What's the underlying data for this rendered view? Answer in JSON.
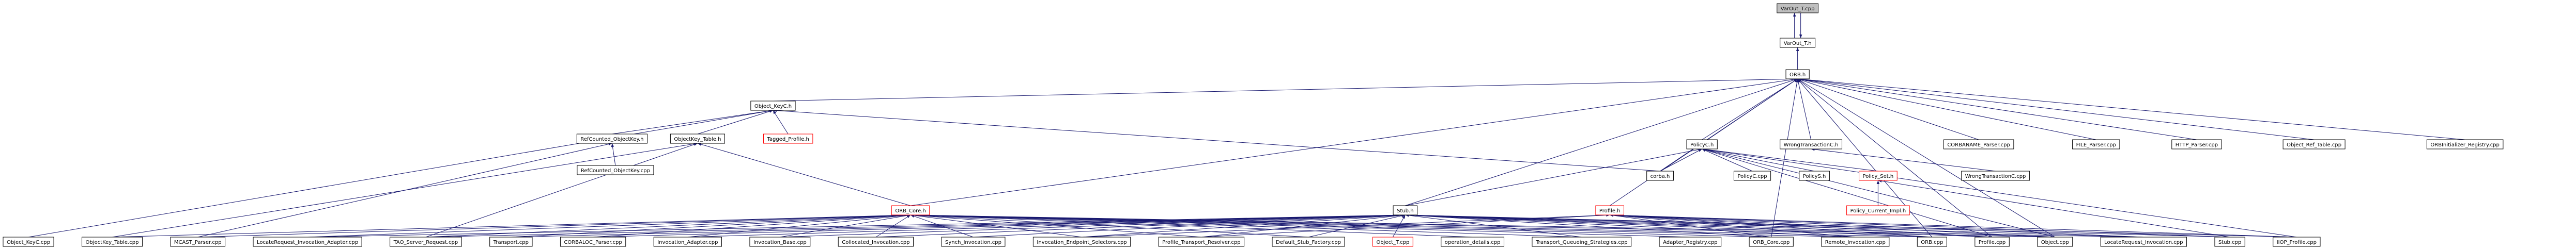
{
  "nodes": [
    {
      "label": "VarOut_T.cpp"
    },
    {
      "label": "VarOut_T.h"
    },
    {
      "label": "ORB.h"
    },
    {
      "label": "Object_KeyC.h"
    },
    {
      "label": "RefCounted_ObjectKey.h"
    },
    {
      "label": "ObjectKey_Table.h"
    },
    {
      "label": "Tagged_Profile.h"
    },
    {
      "label": "PolicyC.h"
    },
    {
      "label": "WrongTransactionC.h"
    },
    {
      "label": "CORBANAME_Parser.cpp"
    },
    {
      "label": "FILE_Parser.cpp"
    },
    {
      "label": "HTTP_Parser.cpp"
    },
    {
      "label": "Object_Ref_Table.cpp"
    },
    {
      "label": "ORBInitializer_Registry.cpp"
    },
    {
      "label": "RefCounted_ObjectKey.cpp"
    },
    {
      "label": "corba.h"
    },
    {
      "label": "PolicyC.cpp"
    },
    {
      "label": "PolicyS.h"
    },
    {
      "label": "Policy_Set.h"
    },
    {
      "label": "WrongTransactionC.cpp"
    },
    {
      "label": "Policy_Current_Impl.h"
    },
    {
      "label": "ORB_Core.h"
    },
    {
      "label": "Stub.h"
    },
    {
      "label": "Profile.h"
    },
    {
      "label": "Object_KeyC.cpp"
    },
    {
      "label": "ObjectKey_Table.cpp"
    },
    {
      "label": "MCAST_Parser.cpp"
    },
    {
      "label": "LocateRequest_Invocation_Adapter.cpp"
    },
    {
      "label": "TAO_Server_Request.cpp"
    },
    {
      "label": "Transport.cpp"
    },
    {
      "label": "CORBALOC_Parser.cpp"
    },
    {
      "label": "Invocation_Adapter.cpp"
    },
    {
      "label": "Invocation_Base.cpp"
    },
    {
      "label": "Collocated_Invocation.cpp"
    },
    {
      "label": "Synch_Invocation.cpp"
    },
    {
      "label": "Invocation_Endpoint_Selectors.cpp"
    },
    {
      "label": "Profile_Transport_Resolver.cpp"
    },
    {
      "label": "Default_Stub_Factory.cpp"
    },
    {
      "label": "Object_T.cpp"
    },
    {
      "label": "operation_details.cpp"
    },
    {
      "label": "Transport_Queueing_Strategies.cpp"
    },
    {
      "label": "Adapter_Registry.cpp"
    },
    {
      "label": "ORB_Core.cpp"
    },
    {
      "label": "Remote_Invocation.cpp"
    },
    {
      "label": "ORB.cpp"
    },
    {
      "label": "Profile.cpp"
    },
    {
      "label": "Object.cpp"
    },
    {
      "label": "LocateRequest_Invocation.cpp"
    },
    {
      "label": "Stub.cpp"
    },
    {
      "label": "IIOP_Profile.cpp"
    }
  ]
}
